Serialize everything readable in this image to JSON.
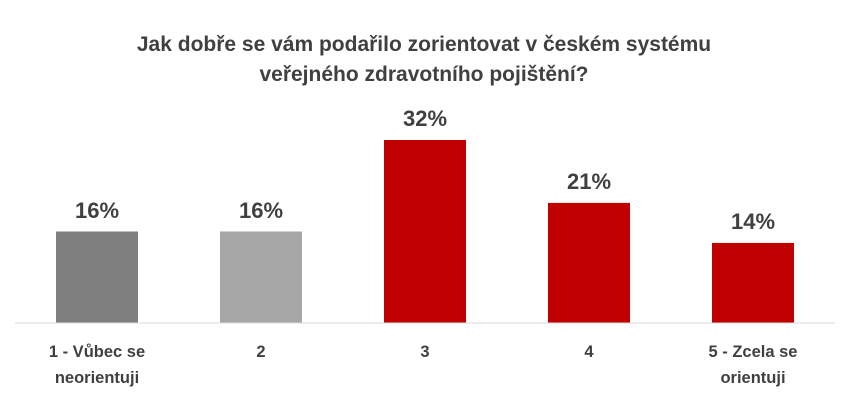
{
  "chart_data": {
    "type": "bar",
    "title": "Jak dobře se vám podařilo zorientovat v českém systému veřejného zdravotního pojištění?",
    "categories": [
      "1 - Vůbec se neorientuji",
      "2",
      "3",
      "4",
      "5 - Zcela se orientuji"
    ],
    "values": [
      16,
      16,
      32,
      21,
      14
    ],
    "value_labels": [
      "16%",
      "16%",
      "32%",
      "21%",
      "14%"
    ],
    "colors": [
      "#7f7f7f",
      "#a6a6a6",
      "#c00000",
      "#c00000",
      "#c00000"
    ]
  }
}
